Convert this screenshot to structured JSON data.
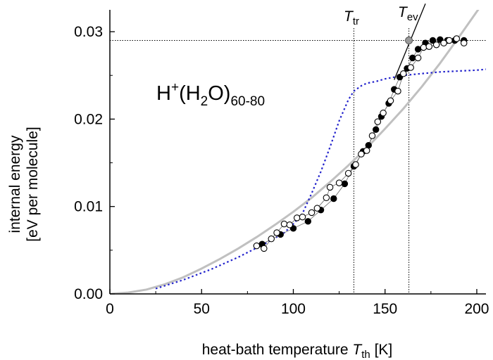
{
  "chart_data": {
    "type": "scatter",
    "title": "",
    "xlabel": {
      "main": "heat-bath temperature ",
      "symbol": "T",
      "symbol_sub": "th",
      "unit": " [K]"
    },
    "ylabel": {
      "line1": "internal energy",
      "line2": "[eV per molecule]"
    },
    "xlim": [
      0,
      205
    ],
    "ylim": [
      0,
      0.0325
    ],
    "xticks": [
      0,
      50,
      100,
      150,
      200
    ],
    "xtick_labels": [
      "0",
      "50",
      "100",
      "150",
      "200"
    ],
    "yticks": [
      0,
      0.01,
      0.02,
      0.03
    ],
    "ytick_labels": [
      "0.00",
      "0.01",
      "0.02",
      "0.03"
    ],
    "grid": false,
    "annotation": {
      "base": "H",
      "sup": "+",
      "mid": "(H",
      "sub2": "2",
      "tail": "O)",
      "sub": "60-80"
    },
    "reference_lines": {
      "T_tr": {
        "x": 133,
        "label_main": "T",
        "label_sub": "tr"
      },
      "T_ev": {
        "x": 163,
        "label_main": "T",
        "label_sub": "ev"
      },
      "plateau": {
        "y": 0.029
      }
    },
    "tangent": {
      "from": [
        155,
        0.0245
      ],
      "to": [
        172,
        0.0332
      ],
      "marker": [
        163,
        0.029
      ]
    },
    "colors": {
      "gray_curve": "#c0c0c0",
      "blue_dotted": "#2222cc",
      "filled": "#000000",
      "open_stroke": "#000000",
      "open_fill": "#ffffff",
      "tangent_marker": "#999999"
    },
    "series": [
      {
        "style": "solid-gray-line",
        "x": [
          0,
          10,
          20,
          30,
          40,
          50,
          60,
          70,
          80,
          90,
          100,
          110,
          120,
          130,
          140,
          150,
          160,
          170,
          180,
          190,
          200,
          205
        ],
        "y": [
          0.0,
          0.00015,
          0.0005,
          0.0011,
          0.0019,
          0.0029,
          0.004,
          0.0052,
          0.0065,
          0.0079,
          0.0094,
          0.011,
          0.0128,
          0.0147,
          0.0167,
          0.0189,
          0.0212,
          0.0237,
          0.0264,
          0.0293,
          0.0323,
          0.0338
        ]
      },
      {
        "style": "dotted-blue-line",
        "x": [
          25,
          40,
          55,
          70,
          85,
          95,
          100,
          105,
          110,
          115,
          120,
          125,
          130,
          133,
          137,
          140,
          145,
          150,
          160,
          170,
          180,
          190,
          200,
          205
        ],
        "y": [
          0.0006,
          0.0016,
          0.0028,
          0.0042,
          0.0058,
          0.007,
          0.008,
          0.0092,
          0.0115,
          0.014,
          0.0168,
          0.0198,
          0.0222,
          0.0232,
          0.0238,
          0.0241,
          0.0243,
          0.0246,
          0.025,
          0.0252,
          0.0254,
          0.0255,
          0.0256,
          0.0257
        ]
      },
      {
        "style": "filled-circles",
        "x": [
          83,
          93,
          100,
          108,
          115,
          122,
          128,
          133,
          138,
          141,
          145,
          148,
          152,
          155,
          158,
          162,
          165,
          168,
          172,
          176,
          180,
          184,
          188,
          193
        ],
        "y": [
          0.0057,
          0.0068,
          0.0075,
          0.0083,
          0.0096,
          0.0109,
          0.0126,
          0.0146,
          0.0163,
          0.017,
          0.0188,
          0.0203,
          0.0218,
          0.0234,
          0.0248,
          0.0258,
          0.027,
          0.028,
          0.0287,
          0.029,
          0.0291,
          0.029,
          0.029,
          0.029
        ]
      },
      {
        "style": "open-circles",
        "x": [
          80,
          84,
          88,
          91,
          95,
          98,
          102,
          105,
          110,
          113,
          118,
          120,
          125,
          130,
          134,
          137,
          140,
          143,
          146,
          149,
          153,
          157,
          160,
          164,
          168,
          171,
          174,
          178,
          182,
          185,
          189,
          193
        ],
        "y": [
          0.0055,
          0.0052,
          0.0063,
          0.007,
          0.008,
          0.0079,
          0.0087,
          0.0088,
          0.0093,
          0.0098,
          0.011,
          0.0122,
          0.0127,
          0.0138,
          0.0148,
          0.016,
          0.0164,
          0.0181,
          0.0197,
          0.0207,
          0.0221,
          0.0232,
          0.0252,
          0.0259,
          0.027,
          0.0282,
          0.0283,
          0.0285,
          0.0287,
          0.029,
          0.0292,
          0.0287
        ]
      }
    ]
  }
}
